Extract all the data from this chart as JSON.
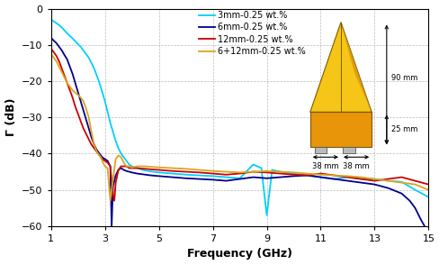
{
  "xlabel": "Frequency (GHz)",
  "ylabel": "Γ (dB)",
  "xlim": [
    1,
    15
  ],
  "ylim": [
    -60,
    0
  ],
  "yticks": [
    0,
    -10,
    -20,
    -30,
    -40,
    -50,
    -60
  ],
  "xticks": [
    1,
    3,
    5,
    7,
    9,
    11,
    13,
    15
  ],
  "legend_labels": [
    "3mm-0.25 wt.%",
    "6mm-0.25 wt.%",
    "12mm-0.25 wt.%",
    "6+12mm-0.25 wt.%"
  ],
  "colors": {
    "3mm": "#00cfff",
    "6mm": "#00008b",
    "12mm": "#cc0000",
    "6+12mm": "#daa520"
  },
  "curve_3mm": {
    "x": [
      1.0,
      1.1,
      1.2,
      1.3,
      1.4,
      1.5,
      1.6,
      1.7,
      1.8,
      1.9,
      2.0,
      2.1,
      2.2,
      2.3,
      2.4,
      2.5,
      2.6,
      2.7,
      2.8,
      2.9,
      3.0,
      3.1,
      3.2,
      3.3,
      3.4,
      3.5,
      3.6,
      3.7,
      3.8,
      3.9,
      4.0,
      4.2,
      4.4,
      4.6,
      4.8,
      5.0,
      5.5,
      6.0,
      6.5,
      7.0,
      7.5,
      8.0,
      8.5,
      8.8,
      9.0,
      9.2,
      9.5,
      10.0,
      10.5,
      11.0,
      11.5,
      12.0,
      12.5,
      13.0,
      13.5,
      14.0,
      14.5,
      15.0
    ],
    "y": [
      -3.0,
      -3.5,
      -4.0,
      -4.5,
      -5.2,
      -6.0,
      -6.8,
      -7.5,
      -8.2,
      -9.0,
      -9.8,
      -10.5,
      -11.5,
      -12.5,
      -13.5,
      -15.0,
      -16.5,
      -18.5,
      -20.5,
      -23.0,
      -25.5,
      -28.5,
      -31.5,
      -34.0,
      -36.5,
      -38.5,
      -40.0,
      -41.0,
      -42.0,
      -43.0,
      -43.5,
      -44.0,
      -44.5,
      -44.8,
      -45.0,
      -45.2,
      -45.5,
      -45.8,
      -46.0,
      -46.2,
      -46.5,
      -46.8,
      -43.0,
      -44.0,
      -57.0,
      -44.5,
      -45.0,
      -45.5,
      -46.0,
      -46.5,
      -47.0,
      -46.5,
      -47.0,
      -47.0,
      -47.5,
      -47.8,
      -50.0,
      -52.0
    ]
  },
  "curve_6mm": {
    "x": [
      1.0,
      1.1,
      1.2,
      1.3,
      1.4,
      1.5,
      1.6,
      1.7,
      1.8,
      1.9,
      2.0,
      2.1,
      2.2,
      2.3,
      2.4,
      2.5,
      2.6,
      2.7,
      2.8,
      2.9,
      3.0,
      3.1,
      3.2,
      3.25,
      3.3,
      3.4,
      3.5,
      3.6,
      3.7,
      3.8,
      3.9,
      4.0,
      4.2,
      4.5,
      4.7,
      5.0,
      5.5,
      6.0,
      6.5,
      7.0,
      7.5,
      8.0,
      8.5,
      9.0,
      9.5,
      10.0,
      10.5,
      11.0,
      11.5,
      12.0,
      12.5,
      13.0,
      13.5,
      14.0,
      14.3,
      14.5,
      14.7,
      15.0
    ],
    "y": [
      -8.0,
      -8.8,
      -9.5,
      -10.5,
      -11.5,
      -12.8,
      -14.0,
      -16.0,
      -18.0,
      -20.5,
      -23.0,
      -25.5,
      -28.0,
      -30.5,
      -33.0,
      -35.5,
      -37.5,
      -39.0,
      -40.0,
      -41.0,
      -41.5,
      -42.0,
      -43.5,
      -60.0,
      -49.0,
      -46.0,
      -44.5,
      -44.0,
      -44.5,
      -44.8,
      -45.0,
      -45.2,
      -45.5,
      -45.8,
      -46.0,
      -46.2,
      -46.5,
      -46.8,
      -47.0,
      -47.2,
      -47.5,
      -47.0,
      -46.5,
      -46.8,
      -46.5,
      -46.2,
      -46.0,
      -46.5,
      -47.0,
      -47.5,
      -48.0,
      -48.5,
      -49.5,
      -51.0,
      -53.0,
      -55.0,
      -58.0,
      -62.0
    ]
  },
  "curve_12mm": {
    "x": [
      1.0,
      1.1,
      1.2,
      1.3,
      1.4,
      1.5,
      1.6,
      1.7,
      1.8,
      1.9,
      2.0,
      2.1,
      2.2,
      2.3,
      2.4,
      2.5,
      2.6,
      2.7,
      2.8,
      2.9,
      3.0,
      3.1,
      3.2,
      3.3,
      3.35,
      3.4,
      3.5,
      3.6,
      3.7,
      3.8,
      3.9,
      4.0,
      4.2,
      4.5,
      5.0,
      5.5,
      6.0,
      6.5,
      7.0,
      7.5,
      8.0,
      8.5,
      9.0,
      9.5,
      10.0,
      10.5,
      11.0,
      11.5,
      12.0,
      12.5,
      13.0,
      13.5,
      14.0,
      14.5,
      15.0
    ],
    "y": [
      -11.0,
      -12.0,
      -13.0,
      -14.5,
      -16.5,
      -18.5,
      -20.5,
      -22.5,
      -24.5,
      -27.0,
      -29.0,
      -31.0,
      -33.0,
      -34.5,
      -36.0,
      -37.5,
      -38.5,
      -39.5,
      -40.5,
      -41.5,
      -42.0,
      -42.5,
      -43.5,
      -51.5,
      -53.0,
      -48.0,
      -44.5,
      -43.5,
      -43.5,
      -43.5,
      -44.0,
      -44.0,
      -44.0,
      -44.2,
      -44.5,
      -44.8,
      -45.0,
      -45.2,
      -45.5,
      -45.8,
      -45.5,
      -45.0,
      -45.2,
      -45.5,
      -45.8,
      -46.0,
      -45.5,
      -46.0,
      -46.5,
      -47.0,
      -47.5,
      -47.0,
      -46.5,
      -47.5,
      -48.5
    ]
  },
  "curve_6p12mm": {
    "x": [
      1.0,
      1.1,
      1.2,
      1.3,
      1.4,
      1.5,
      1.6,
      1.7,
      1.8,
      1.9,
      2.0,
      2.1,
      2.2,
      2.3,
      2.4,
      2.5,
      2.6,
      2.7,
      2.8,
      2.85,
      2.9,
      3.0,
      3.1,
      3.2,
      3.3,
      3.4,
      3.5,
      3.6,
      3.7,
      3.8,
      3.9,
      4.0,
      4.2,
      4.5,
      5.0,
      5.5,
      6.0,
      6.5,
      7.0,
      7.5,
      8.0,
      8.5,
      9.0,
      9.5,
      10.0,
      10.5,
      11.0,
      11.5,
      12.0,
      12.5,
      13.0,
      13.5,
      14.0,
      14.5,
      15.0
    ],
    "y": [
      -12.5,
      -13.5,
      -14.5,
      -16.0,
      -17.5,
      -19.0,
      -20.5,
      -21.5,
      -22.5,
      -23.2,
      -23.8,
      -24.5,
      -25.5,
      -27.5,
      -30.0,
      -34.0,
      -37.5,
      -39.5,
      -40.5,
      -41.0,
      -42.0,
      -43.5,
      -44.0,
      -53.0,
      -47.0,
      -41.5,
      -40.5,
      -41.0,
      -42.5,
      -43.5,
      -43.5,
      -43.8,
      -43.5,
      -43.5,
      -43.8,
      -44.0,
      -44.2,
      -44.5,
      -44.8,
      -45.0,
      -45.2,
      -45.0,
      -44.8,
      -45.0,
      -45.2,
      -45.5,
      -45.8,
      -46.0,
      -46.2,
      -46.5,
      -47.0,
      -47.5,
      -48.0,
      -48.5,
      -50.0
    ]
  },
  "inset": {
    "pyramid_color_light": "#f5c518",
    "pyramid_color_dark": "#d4920a",
    "base_color": "#e8950a",
    "edge_color": "#7a5900",
    "dim_90mm": "90 mm",
    "dim_25mm": "25 mm",
    "dim_38mm_left": "38 mm",
    "dim_38mm_right": "38 mm"
  }
}
